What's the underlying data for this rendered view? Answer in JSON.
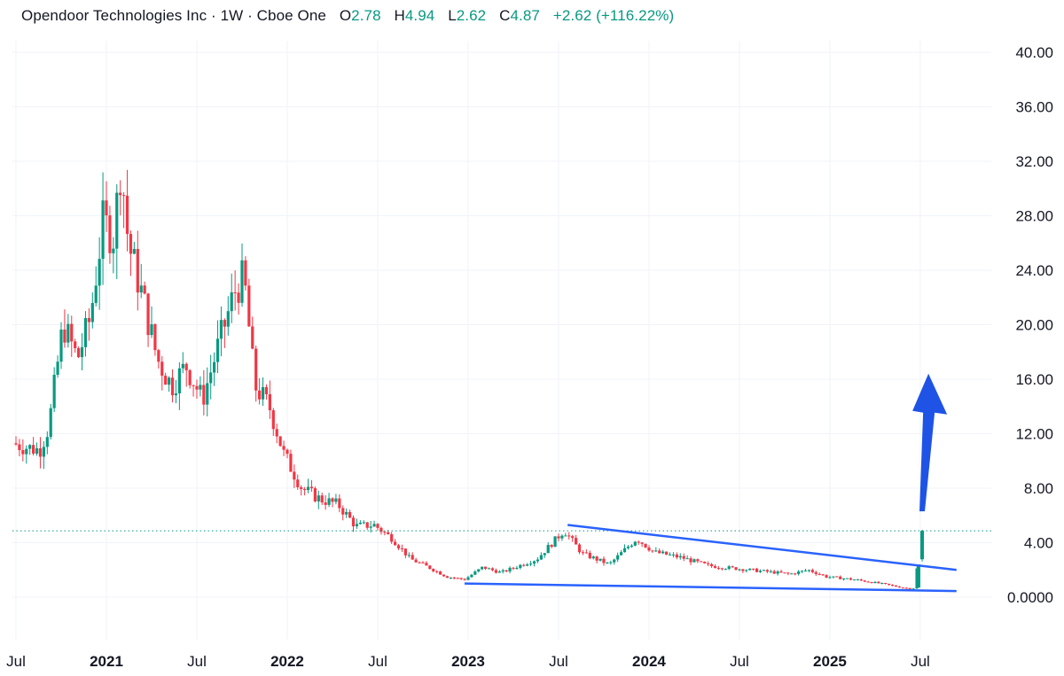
{
  "header": {
    "title": "Opendoor Technologies Inc · 1W · Cboe One",
    "o_label": "O",
    "o_value": "2.78",
    "h_label": "H",
    "h_value": "4.94",
    "l_label": "L",
    "l_value": "2.62",
    "c_label": "C",
    "c_value": "4.87",
    "change": "+2.62 (+116.22%)"
  },
  "colors": {
    "up": "#089981",
    "down": "#f23645",
    "trendline": "#2962ff",
    "arrow": "#1e53e5",
    "grid": "#f0f3fa",
    "price_line": "#089981"
  },
  "chart_data": {
    "type": "candlestick",
    "title": "Opendoor Technologies Inc · 1W · Cboe One",
    "y_range": [
      -3,
      42
    ],
    "y_ticks": [
      "40.00",
      "36.00",
      "32.00",
      "28.00",
      "24.00",
      "20.00",
      "16.00",
      "12.00",
      "8.00",
      "4.00",
      "0.0000"
    ],
    "y_tick_values": [
      40,
      36,
      32,
      28,
      24,
      20,
      16,
      12,
      8,
      4,
      0
    ],
    "x_range": [
      "2020-07",
      "2025-10"
    ],
    "x_ticks": [
      {
        "label": "Jul",
        "time": 2020.5,
        "year": false
      },
      {
        "label": "2021",
        "time": 2021.0,
        "year": true
      },
      {
        "label": "Jul",
        "time": 2021.5,
        "year": false
      },
      {
        "label": "2022",
        "time": 2022.0,
        "year": true
      },
      {
        "label": "Jul",
        "time": 2022.5,
        "year": false
      },
      {
        "label": "2023",
        "time": 2023.0,
        "year": true
      },
      {
        "label": "Jul",
        "time": 2023.5,
        "year": false
      },
      {
        "label": "2024",
        "time": 2024.0,
        "year": true
      },
      {
        "label": "Jul",
        "time": 2024.5,
        "year": false
      },
      {
        "label": "2025",
        "time": 2025.0,
        "year": true
      },
      {
        "label": "Jul",
        "time": 2025.5,
        "year": false
      }
    ],
    "last_price": 4.87,
    "last_candle": {
      "open": 2.78,
      "high": 4.94,
      "low": 2.62,
      "close": 4.87
    },
    "price_path": [
      [
        2020.5,
        11.3
      ],
      [
        2020.58,
        11.0
      ],
      [
        2020.65,
        10.8
      ],
      [
        2020.7,
        12.5
      ],
      [
        2020.78,
        20.0
      ],
      [
        2020.86,
        17.5
      ],
      [
        2020.93,
        20.5
      ],
      [
        2021.0,
        27.5
      ],
      [
        2021.06,
        26.5
      ],
      [
        2021.1,
        32.0
      ],
      [
        2021.14,
        26.0
      ],
      [
        2021.22,
        22.0
      ],
      [
        2021.3,
        17.5
      ],
      [
        2021.38,
        15.5
      ],
      [
        2021.46,
        17.0
      ],
      [
        2021.55,
        14.5
      ],
      [
        2021.65,
        19.0
      ],
      [
        2021.73,
        22.5
      ],
      [
        2021.78,
        23.5
      ],
      [
        2021.84,
        15.5
      ],
      [
        2021.92,
        14.0
      ],
      [
        2022.0,
        10.5
      ],
      [
        2022.1,
        8.0
      ],
      [
        2022.2,
        7.2
      ],
      [
        2022.3,
        6.8
      ],
      [
        2022.4,
        5.2
      ],
      [
        2022.5,
        5.3
      ],
      [
        2022.6,
        4.3
      ],
      [
        2022.7,
        2.8
      ],
      [
        2022.8,
        2.2
      ],
      [
        2022.9,
        1.5
      ],
      [
        2023.0,
        1.3
      ],
      [
        2023.1,
        2.2
      ],
      [
        2023.2,
        1.8
      ],
      [
        2023.3,
        2.3
      ],
      [
        2023.4,
        2.8
      ],
      [
        2023.55,
        4.9
      ],
      [
        2023.65,
        3.2
      ],
      [
        2023.8,
        2.4
      ],
      [
        2023.95,
        4.3
      ],
      [
        2024.05,
        3.3
      ],
      [
        2024.2,
        2.9
      ],
      [
        2024.35,
        2.3
      ],
      [
        2024.5,
        2.1
      ],
      [
        2024.65,
        1.9
      ],
      [
        2024.8,
        1.7
      ],
      [
        2024.9,
        2.0
      ],
      [
        2025.0,
        1.5
      ],
      [
        2025.15,
        1.3
      ],
      [
        2025.3,
        1.0
      ],
      [
        2025.42,
        0.7
      ],
      [
        2025.48,
        0.6
      ],
      [
        2025.51,
        2.8
      ]
    ],
    "annotations": {
      "upper_trendline": [
        [
          2023.55,
          5.3
        ],
        [
          2025.7,
          2.0
        ]
      ],
      "lower_trendline": [
        [
          2022.98,
          1.0
        ],
        [
          2025.7,
          0.45
        ]
      ],
      "arrow": {
        "from": [
          2025.51,
          6.3
        ],
        "to": [
          2025.54,
          15.5
        ]
      }
    }
  }
}
